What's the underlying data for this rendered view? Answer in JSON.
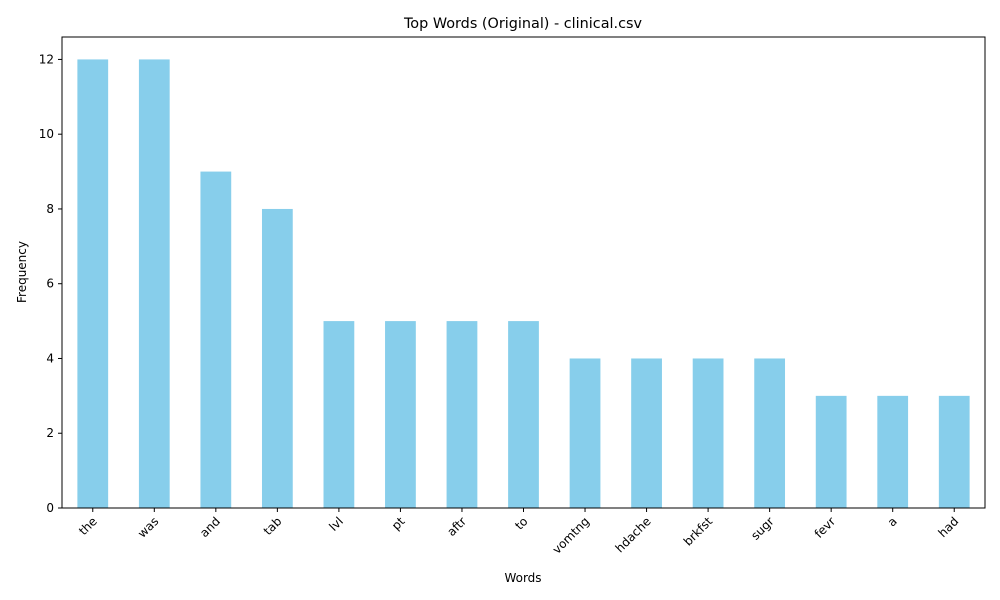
{
  "chart_data": {
    "type": "bar",
    "title": "Top Words (Original) - clinical.csv",
    "xlabel": "Words",
    "ylabel": "Frequency",
    "categories": [
      "the",
      "was",
      "and",
      "tab",
      "lvl",
      "pt",
      "aftr",
      "to",
      "vomtng",
      "hdache",
      "brkfst",
      "sugr",
      "fevr",
      "a",
      "had"
    ],
    "values": [
      12,
      12,
      9,
      8,
      5,
      5,
      5,
      5,
      4,
      4,
      4,
      4,
      3,
      3,
      3
    ],
    "ylim": [
      0,
      12.6
    ],
    "yticks": [
      0,
      2,
      4,
      6,
      8,
      10,
      12
    ],
    "bar_color": "#87ceeb",
    "grid": false,
    "legend": "none"
  }
}
